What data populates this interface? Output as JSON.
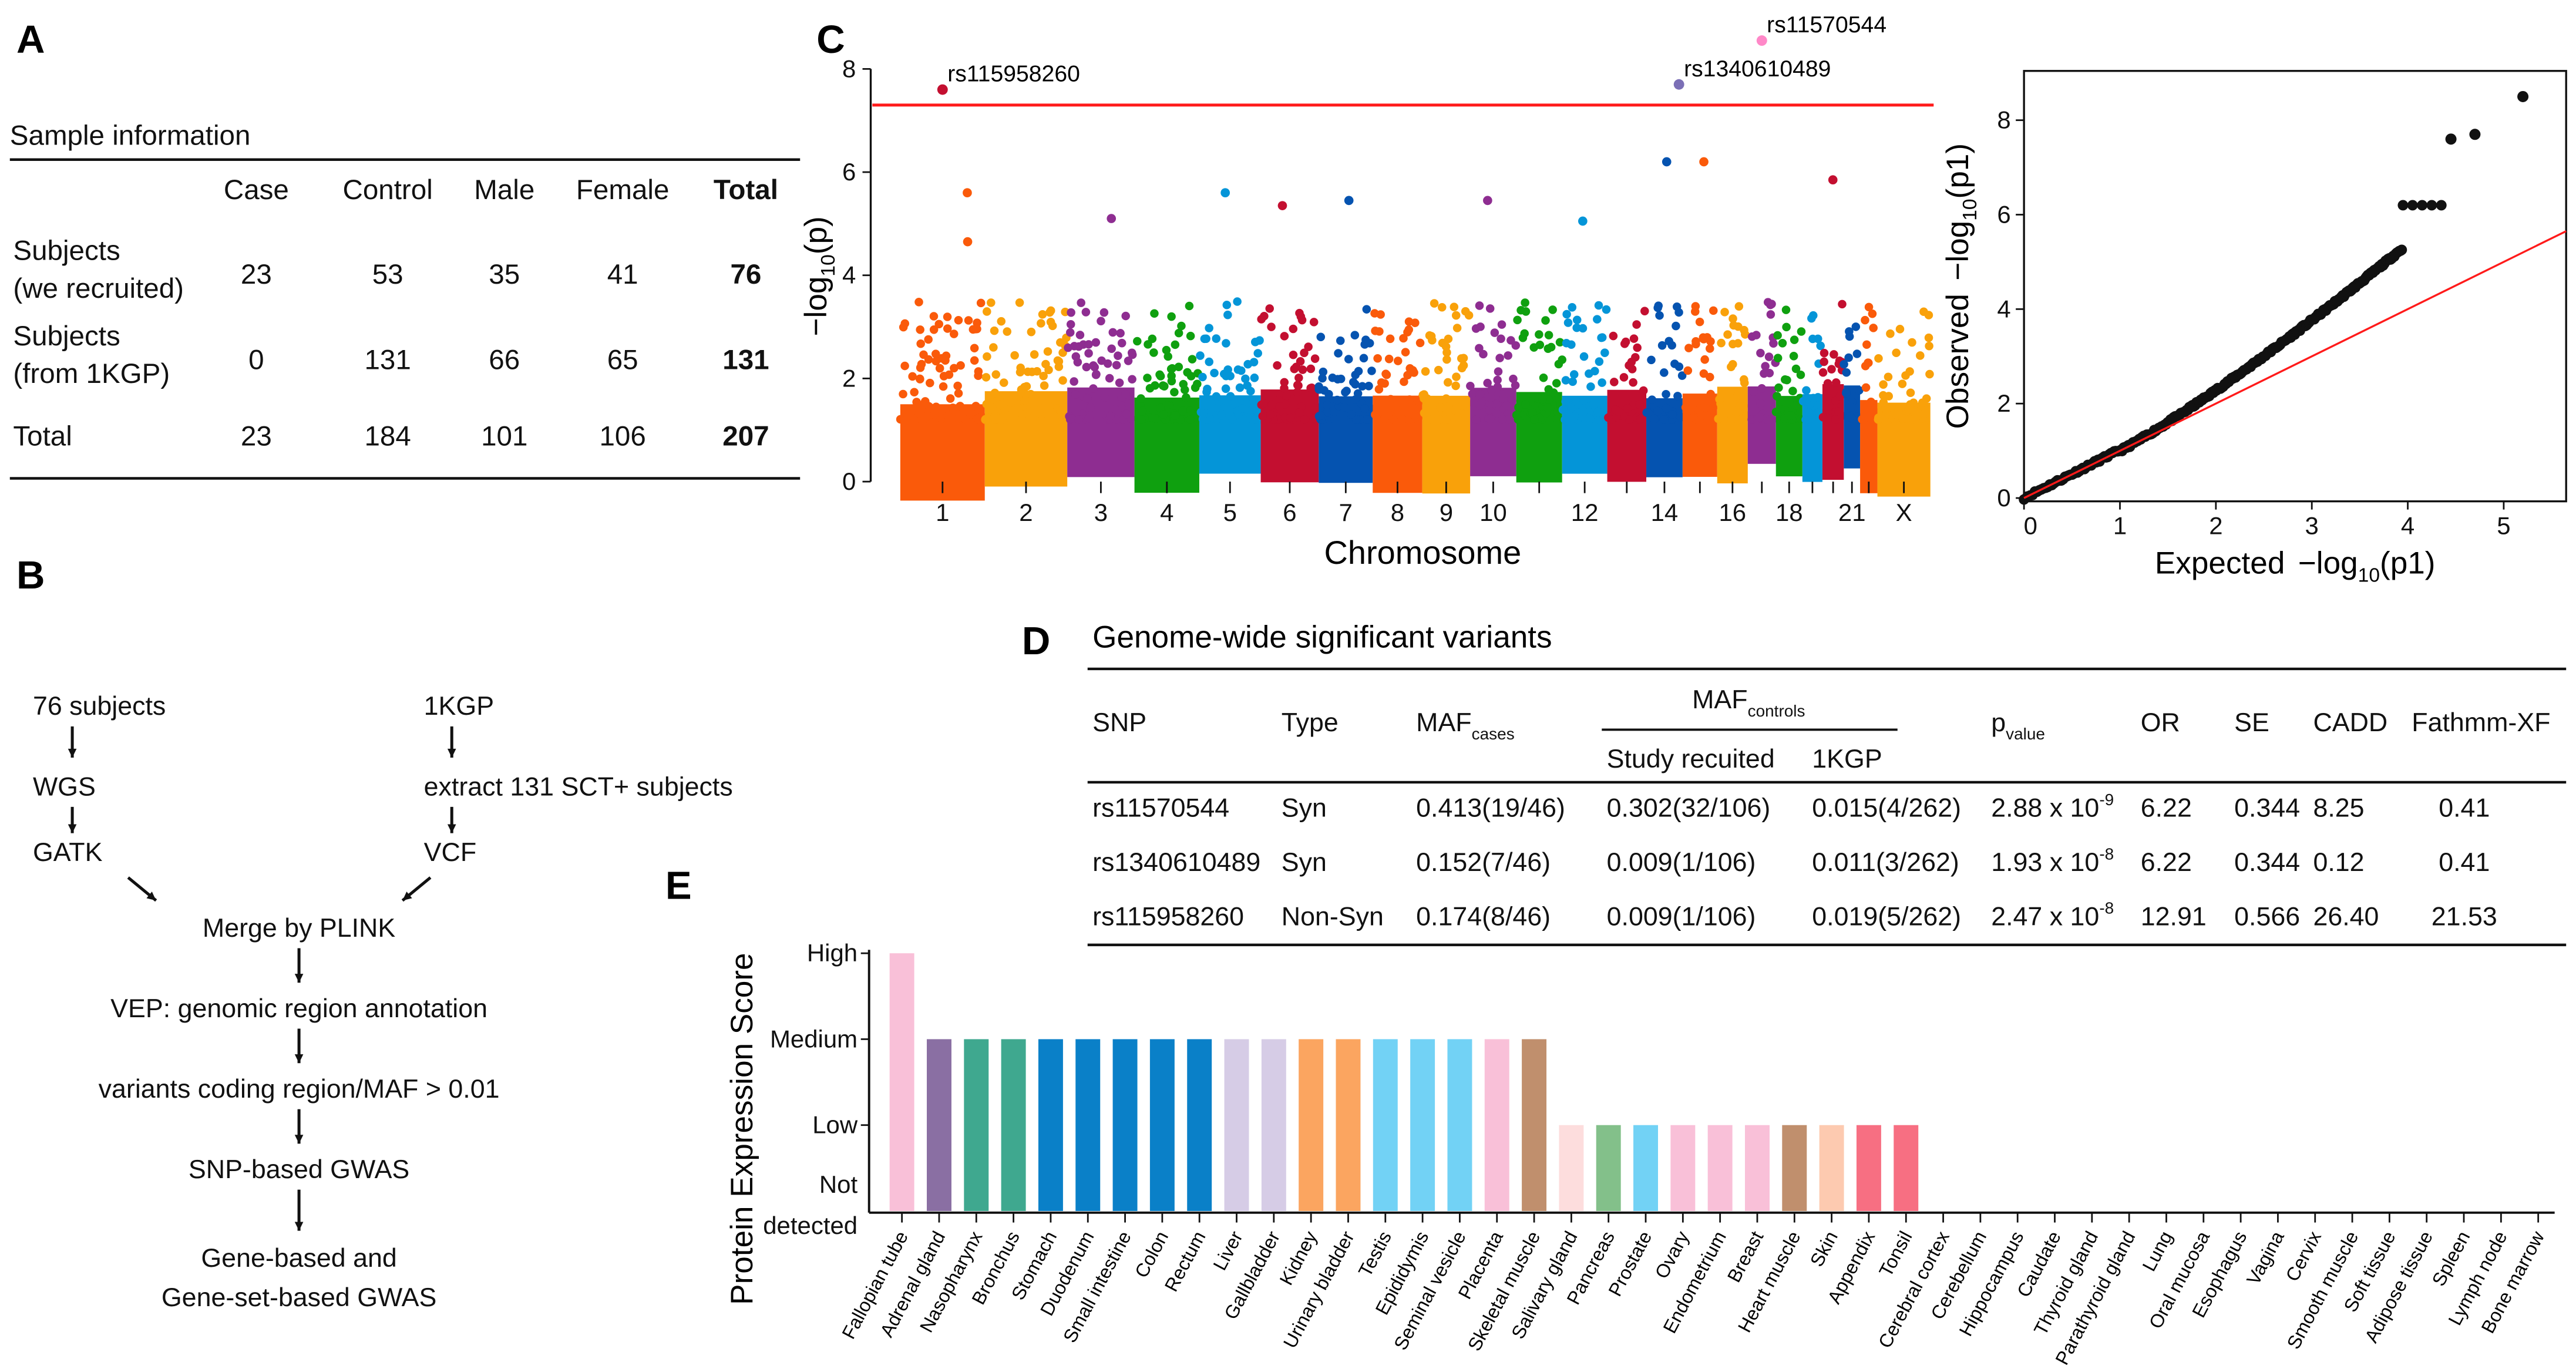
{
  "panels": {
    "a": "A",
    "b": "B",
    "c": "C",
    "d": "D",
    "e": "E"
  },
  "sample_table": {
    "title": "Sample information",
    "columns": [
      "Case",
      "Control",
      "Male",
      "Female",
      "Total"
    ],
    "rows": [
      {
        "label1": "Subjects",
        "label2": "(we recruited)",
        "values": [
          "23",
          "53",
          "35",
          "41",
          "76"
        ]
      },
      {
        "label1": "Subjects",
        "label2": "(from 1KGP)",
        "values": [
          "0",
          "131",
          "66",
          "65",
          "131"
        ]
      },
      {
        "label1": "Total",
        "label2": "",
        "values": [
          "23",
          "184",
          "101",
          "106",
          "207"
        ]
      }
    ]
  },
  "flowchart": {
    "left": [
      "76 subjects",
      "WGS",
      "GATK"
    ],
    "right": [
      "1KGP",
      "extract 131 SCT+ subjects",
      "VCF"
    ],
    "main": [
      "Merge by PLINK",
      "VEP: genomic region annotation",
      "variants coding region/MAF > 0.01",
      "SNP-based GWAS",
      "Gene-based and",
      "Gene-set-based GWAS"
    ]
  },
  "variants_table": {
    "title": "Genome-wide significant variants",
    "headers": {
      "snp": "SNP",
      "type": "Type",
      "maf_cases": "MAF",
      "maf_cases_sub": "cases",
      "maf_controls": "MAF",
      "maf_controls_sub": "controls",
      "study": "Study recuited",
      "kgp": "1KGP",
      "p": "p",
      "p_sub": "value",
      "or": "OR",
      "se": "SE",
      "cadd": "CADD",
      "fathmm": "Fathmm-XF"
    },
    "rows": [
      {
        "snp": "rs11570544",
        "type": "Syn",
        "maf_cases": "0.413(19/46)",
        "study": "0.302(32/106)",
        "kgp": "0.015(4/262)",
        "p_base": "2.88 x 10",
        "p_exp": "-9",
        "or": "6.22",
        "se": "0.344",
        "cadd": "8.25",
        "fathmm": "0.41"
      },
      {
        "snp": "rs1340610489",
        "type": "Syn",
        "maf_cases": "0.152(7/46)",
        "study": "0.009(1/106)",
        "kgp": "0.011(3/262)",
        "p_base": "1.93 x 10",
        "p_exp": "-8",
        "or": "6.22",
        "se": "0.344",
        "cadd": "0.12",
        "fathmm": "0.41"
      },
      {
        "snp": "rs115958260",
        "type": "Non-Syn",
        "maf_cases": "0.174(8/46)",
        "study": "0.009(1/106)",
        "kgp": "0.019(5/262)",
        "p_base": "2.47 x 10",
        "p_exp": "-8",
        "or": "12.91",
        "se": "0.566",
        "cadd": "26.40",
        "fathmm": "21.53"
      }
    ]
  },
  "chart_data": [
    {
      "type": "scatter",
      "kind": "manhattan",
      "xlabel": "Chromosome",
      "ylabel_main": "−log",
      "ylabel_sub": "10",
      "ylabel_end": "(p)",
      "ylim": [
        0,
        8
      ],
      "yticks": [
        "0",
        "2",
        "4",
        "6",
        "8"
      ],
      "chromosomes": [
        "1",
        "2",
        "3",
        "4",
        "5",
        "6",
        "7",
        "8",
        "9",
        "10",
        "11",
        "12",
        "13",
        "14",
        "15",
        "16",
        "17",
        "18",
        "19",
        "20",
        "21",
        "22",
        "X"
      ],
      "tick_labels": {
        "1": "1",
        "2": "2",
        "3": "3",
        "4": "4",
        "5": "5",
        "6": "6",
        "7": "7",
        "8": "8",
        "9": "9",
        "10": "10",
        "12": "12",
        "14": "14",
        "16": "16",
        "18": "18",
        "21": "21",
        "X": "X"
      },
      "colors": [
        "#fa5a0a",
        "#f9a10a",
        "#8e2d91",
        "#0fa00f",
        "#0495d8",
        "#c30f30",
        "#0553b0"
      ],
      "threshold": 7.3,
      "threshold_color": "#ff1a1a",
      "labeled_snps": [
        {
          "name": "rs115958260",
          "chromosome": "1",
          "value": 7.6,
          "color": "#c30f30"
        },
        {
          "name": "rs1340610489",
          "chromosome": "14",
          "value": 7.7,
          "color": "#7b6fb6"
        },
        {
          "name": "rs11570544",
          "chromosome": "17",
          "value": 8.55,
          "color": "#ff88c8"
        }
      ],
      "peaks": [
        {
          "chromosome": "1",
          "value": 5.6
        },
        {
          "chromosome": "1",
          "value": 4.65
        },
        {
          "chromosome": "3",
          "value": 5.1
        },
        {
          "chromosome": "5",
          "value": 5.6
        },
        {
          "chromosome": "6",
          "value": 5.35
        },
        {
          "chromosome": "7",
          "value": 5.45
        },
        {
          "chromosome": "10",
          "value": 5.45
        },
        {
          "chromosome": "12",
          "value": 5.05
        },
        {
          "chromosome": "14",
          "value": 6.2
        },
        {
          "chromosome": "15",
          "value": 6.2
        },
        {
          "chromosome": "20",
          "value": 5.85
        }
      ]
    },
    {
      "type": "scatter",
      "kind": "qq",
      "xlabel": "Expected",
      "ylabel": "Observed",
      "axis_func": "−log",
      "axis_sub": "10",
      "axis_end": "(p1)",
      "xlim": [
        0,
        5.65
      ],
      "ylim": [
        0,
        9
      ],
      "xticks": [
        "0",
        "1",
        "2",
        "3",
        "4",
        "5"
      ],
      "yticks": [
        "0",
        "2",
        "4",
        "6",
        "8"
      ],
      "reference_line": "y = x",
      "top_points": [
        {
          "x": 4.45,
          "y": 7.6
        },
        {
          "x": 4.7,
          "y": 7.7
        },
        {
          "x": 5.2,
          "y": 8.5
        }
      ],
      "plateau": {
        "x_from": 3.95,
        "x_to": 4.35,
        "y": 6.2
      }
    },
    {
      "type": "bar",
      "ylabel": "Protein Expression Score",
      "levels": [
        "Not detected",
        "Low",
        "Medium",
        "High"
      ],
      "level_labels": {
        "high": "High",
        "medium": "Medium",
        "low": "Low",
        "not1": "Not",
        "not2": "detected"
      },
      "categories": [
        "Fallopian tube",
        "Adrenal gland",
        "Nasopharynx",
        "Bronchus",
        "Stomach",
        "Duodenum",
        "Small intestine",
        "Colon",
        "Rectum",
        "Liver",
        "Gallbladder",
        "Kidney",
        "Urinary bladder",
        "Testis",
        "Epididymis",
        "Seminal vesicle",
        "Placenta",
        "Skeletal muscle",
        "Salivary gland",
        "Pancreas",
        "Prostate",
        "Ovary",
        "Endometrium",
        "Breast",
        "Heart muscle",
        "Skin",
        "Appendix",
        "Tonsil",
        "Cerebral cortex",
        "Cerebellum",
        "Hippocampus",
        "Caudate",
        "Thyroid gland",
        "Parathyroid gland",
        "Lung",
        "Oral mucosa",
        "Esophagus",
        "Vagina",
        "Cervix",
        "Smooth muscle",
        "Soft tissue",
        "Adipose tissue",
        "Spleen",
        "Lymph node",
        "Bone marrow"
      ],
      "values": [
        3,
        2,
        2,
        2,
        2,
        2,
        2,
        2,
        2,
        2,
        2,
        2,
        2,
        2,
        2,
        2,
        2,
        2,
        1,
        1,
        1,
        1,
        1,
        1,
        1,
        1,
        1,
        1,
        0,
        0,
        0,
        0,
        0,
        0,
        0,
        0,
        0,
        0,
        0,
        0,
        0,
        0,
        0,
        0,
        0
      ],
      "colors": [
        "#f9c0d8",
        "#8a6fa3",
        "#3fa88f",
        "#3fa88f",
        "#0a80c8",
        "#0a80c8",
        "#0a80c8",
        "#0a80c8",
        "#0a80c8",
        "#d6cce6",
        "#d6cce6",
        "#fba560",
        "#fba560",
        "#72d2f5",
        "#72d2f5",
        "#72d2f5",
        "#f9c0d8",
        "#c08f6d",
        "#fddddd",
        "#83c08a",
        "#72d2f5",
        "#f9c0d8",
        "#f9c0d8",
        "#f9c0d8",
        "#c08f6d",
        "#fdcab0",
        "#f76f82",
        "#f76f82",
        "#fff",
        "#fff",
        "#fff",
        "#fff",
        "#fff",
        "#fff",
        "#fff",
        "#fff",
        "#fff",
        "#fff",
        "#fff",
        "#fff",
        "#fff",
        "#fff",
        "#fff",
        "#fff",
        "#fff"
      ]
    }
  ]
}
